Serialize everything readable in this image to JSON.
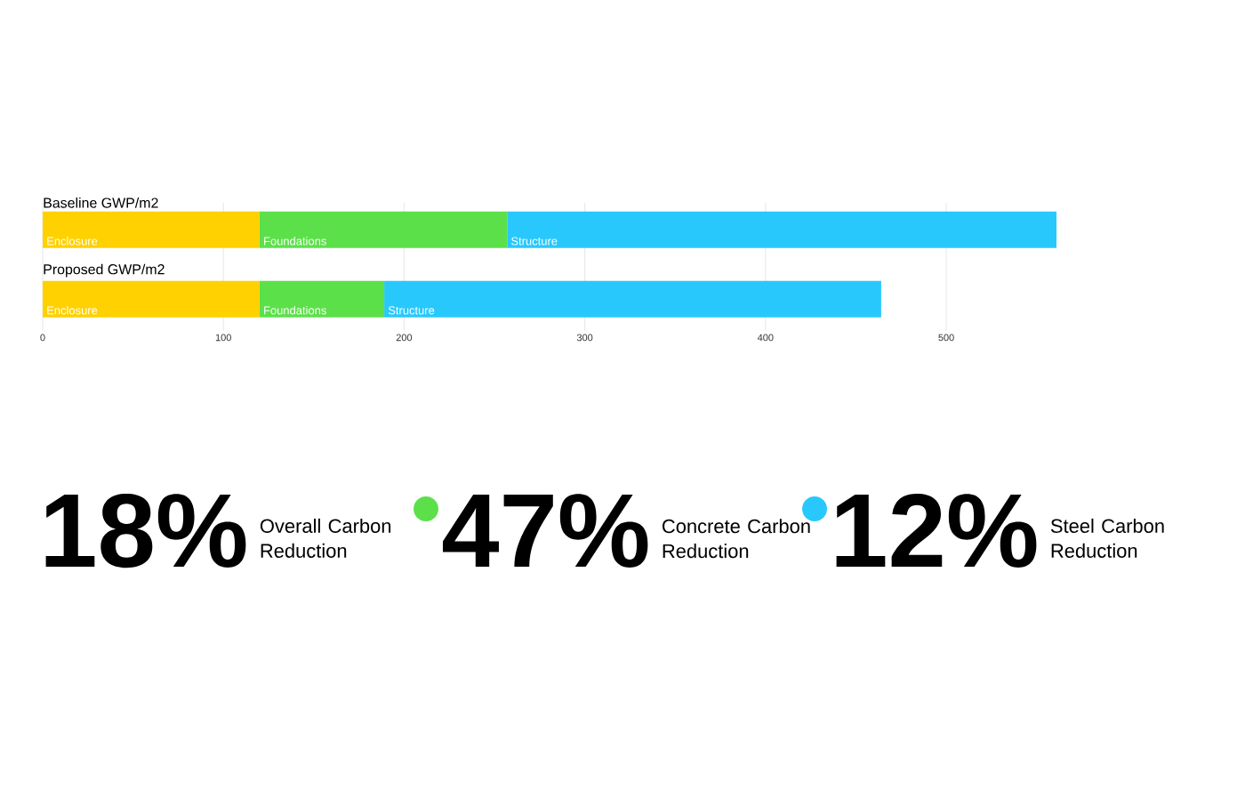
{
  "chart_data": {
    "type": "bar",
    "orientation": "horizontal",
    "stacked": true,
    "categories": [
      "Baseline GWP/m2",
      "Proposed GWP/m2"
    ],
    "series": [
      {
        "name": "Enclosure",
        "color": "#ffd100",
        "values": [
          120,
          120
        ]
      },
      {
        "name": "Foundations",
        "color": "#5ce04a",
        "values": [
          137,
          69
        ]
      },
      {
        "name": "Structure",
        "color": "#29c8fc",
        "values": [
          304,
          275
        ]
      }
    ],
    "xlim": [
      0,
      560
    ],
    "xticks": [
      0,
      100,
      200,
      300,
      400,
      500
    ],
    "grid": "x",
    "annotations": [
      "18%",
      "Overall Carbon Reduction",
      "47%",
      "Concrete Carbon Reduction",
      "12%",
      "Steel Carbon Reduction"
    ]
  }
}
